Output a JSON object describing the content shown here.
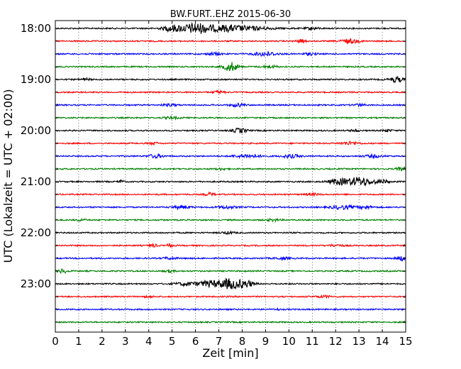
{
  "chart_data": {
    "type": "line",
    "title": "BW.FURT..EHZ 2015-06-30",
    "xlabel": "Zeit  [min]",
    "ylabel": "UTC (Lokalzeit = UTC + 02:00)",
    "xlim": [
      0,
      15
    ],
    "x_ticks": [
      "0",
      "1",
      "2",
      "3",
      "4",
      "5",
      "6",
      "7",
      "8",
      "9",
      "10",
      "11",
      "12",
      "13",
      "14",
      "15"
    ],
    "y_tick_labels": [
      "18:00",
      "19:00",
      "20:00",
      "21:00",
      "22:00",
      "23:00"
    ],
    "grid": "vertical dotted",
    "trace_colors": [
      "#000000",
      "#ff0000",
      "#0000ff",
      "#008000"
    ],
    "series": [
      {
        "start": "18:00",
        "bursts": [
          [
            6.0,
            1.0,
            0.6
          ],
          [
            5.0,
            0.6,
            0.4
          ],
          [
            7.2,
            0.5,
            0.8
          ],
          [
            8.3,
            0.35,
            1.0
          ],
          [
            11.0,
            0.2,
            0.3
          ]
        ]
      },
      {
        "start": "18:15",
        "bursts": [
          [
            10.5,
            0.3,
            0.2
          ],
          [
            12.6,
            0.4,
            0.4
          ]
        ]
      },
      {
        "start": "18:30",
        "bursts": [
          [
            9.0,
            0.4,
            0.5
          ],
          [
            6.8,
            0.25,
            0.3
          ],
          [
            10.9,
            0.2,
            0.3
          ]
        ]
      },
      {
        "start": "18:45",
        "bursts": [
          [
            7.5,
            0.9,
            0.3
          ],
          [
            9.2,
            0.25,
            0.3
          ]
        ]
      },
      {
        "start": "19:00",
        "bursts": [
          [
            14.6,
            0.5,
            0.3
          ],
          [
            1.3,
            0.2,
            0.2
          ]
        ]
      },
      {
        "start": "19:15",
        "bursts": [
          [
            7.0,
            0.3,
            0.2
          ]
        ]
      },
      {
        "start": "19:30",
        "bursts": [
          [
            7.8,
            0.3,
            0.3
          ],
          [
            4.9,
            0.2,
            0.3
          ],
          [
            13.0,
            0.2,
            0.3
          ]
        ]
      },
      {
        "start": "19:45",
        "bursts": [
          [
            5.0,
            0.2,
            0.3
          ]
        ]
      },
      {
        "start": "20:00",
        "bursts": [
          [
            7.9,
            0.45,
            0.3
          ],
          [
            12.8,
            0.2,
            0.2
          ],
          [
            14.2,
            0.2,
            0.2
          ]
        ]
      },
      {
        "start": "20:15",
        "bursts": [
          [
            12.6,
            0.3,
            0.4
          ],
          [
            4.2,
            0.2,
            0.2
          ]
        ]
      },
      {
        "start": "20:30",
        "bursts": [
          [
            4.3,
            0.35,
            0.3
          ],
          [
            8.2,
            0.3,
            0.6
          ],
          [
            10.1,
            0.3,
            0.4
          ],
          [
            13.6,
            0.25,
            0.4
          ]
        ]
      },
      {
        "start": "20:45",
        "bursts": [
          [
            14.8,
            0.3,
            0.2
          ],
          [
            7.1,
            0.2,
            0.2
          ]
        ]
      },
      {
        "start": "21:00",
        "bursts": [
          [
            13.0,
            0.85,
            0.6
          ],
          [
            12.1,
            0.5,
            0.4
          ],
          [
            2.8,
            0.35,
            0.1
          ],
          [
            14.0,
            0.3,
            0.3
          ]
        ]
      },
      {
        "start": "21:15",
        "bursts": [
          [
            6.6,
            0.3,
            0.2
          ],
          [
            11.0,
            0.2,
            0.3
          ]
        ]
      },
      {
        "start": "21:30",
        "bursts": [
          [
            12.3,
            0.35,
            0.5
          ],
          [
            13.3,
            0.3,
            0.3
          ],
          [
            5.4,
            0.3,
            0.4
          ],
          [
            7.3,
            0.25,
            0.4
          ]
        ]
      },
      {
        "start": "21:45",
        "bursts": [
          [
            1.1,
            0.2,
            0.2
          ],
          [
            9.3,
            0.2,
            0.3
          ]
        ]
      },
      {
        "start": "22:00",
        "bursts": [
          [
            7.4,
            0.2,
            0.3
          ]
        ]
      },
      {
        "start": "22:15",
        "bursts": [
          [
            4.9,
            0.45,
            0.1
          ],
          [
            4.2,
            0.3,
            0.15
          ],
          [
            12.0,
            0.2,
            0.3
          ]
        ]
      },
      {
        "start": "22:30",
        "bursts": [
          [
            14.8,
            0.45,
            0.2
          ],
          [
            9.7,
            0.2,
            0.3
          ],
          [
            4.9,
            0.2,
            0.3
          ]
        ]
      },
      {
        "start": "22:45",
        "bursts": [
          [
            0.3,
            0.4,
            0.2
          ],
          [
            4.9,
            0.2,
            0.2
          ]
        ]
      },
      {
        "start": "23:00",
        "bursts": [
          [
            7.5,
            1.0,
            0.5
          ],
          [
            6.6,
            0.6,
            0.5
          ],
          [
            8.2,
            0.6,
            0.3
          ],
          [
            5.6,
            0.3,
            0.5
          ]
        ]
      },
      {
        "start": "23:15",
        "bursts": [
          [
            11.5,
            0.2,
            0.3
          ],
          [
            4.0,
            0.15,
            0.2
          ]
        ]
      },
      {
        "start": "23:30",
        "bursts": [
          [
            9.5,
            0.15,
            0.1
          ]
        ]
      },
      {
        "start": "23:45",
        "bursts": []
      }
    ]
  }
}
